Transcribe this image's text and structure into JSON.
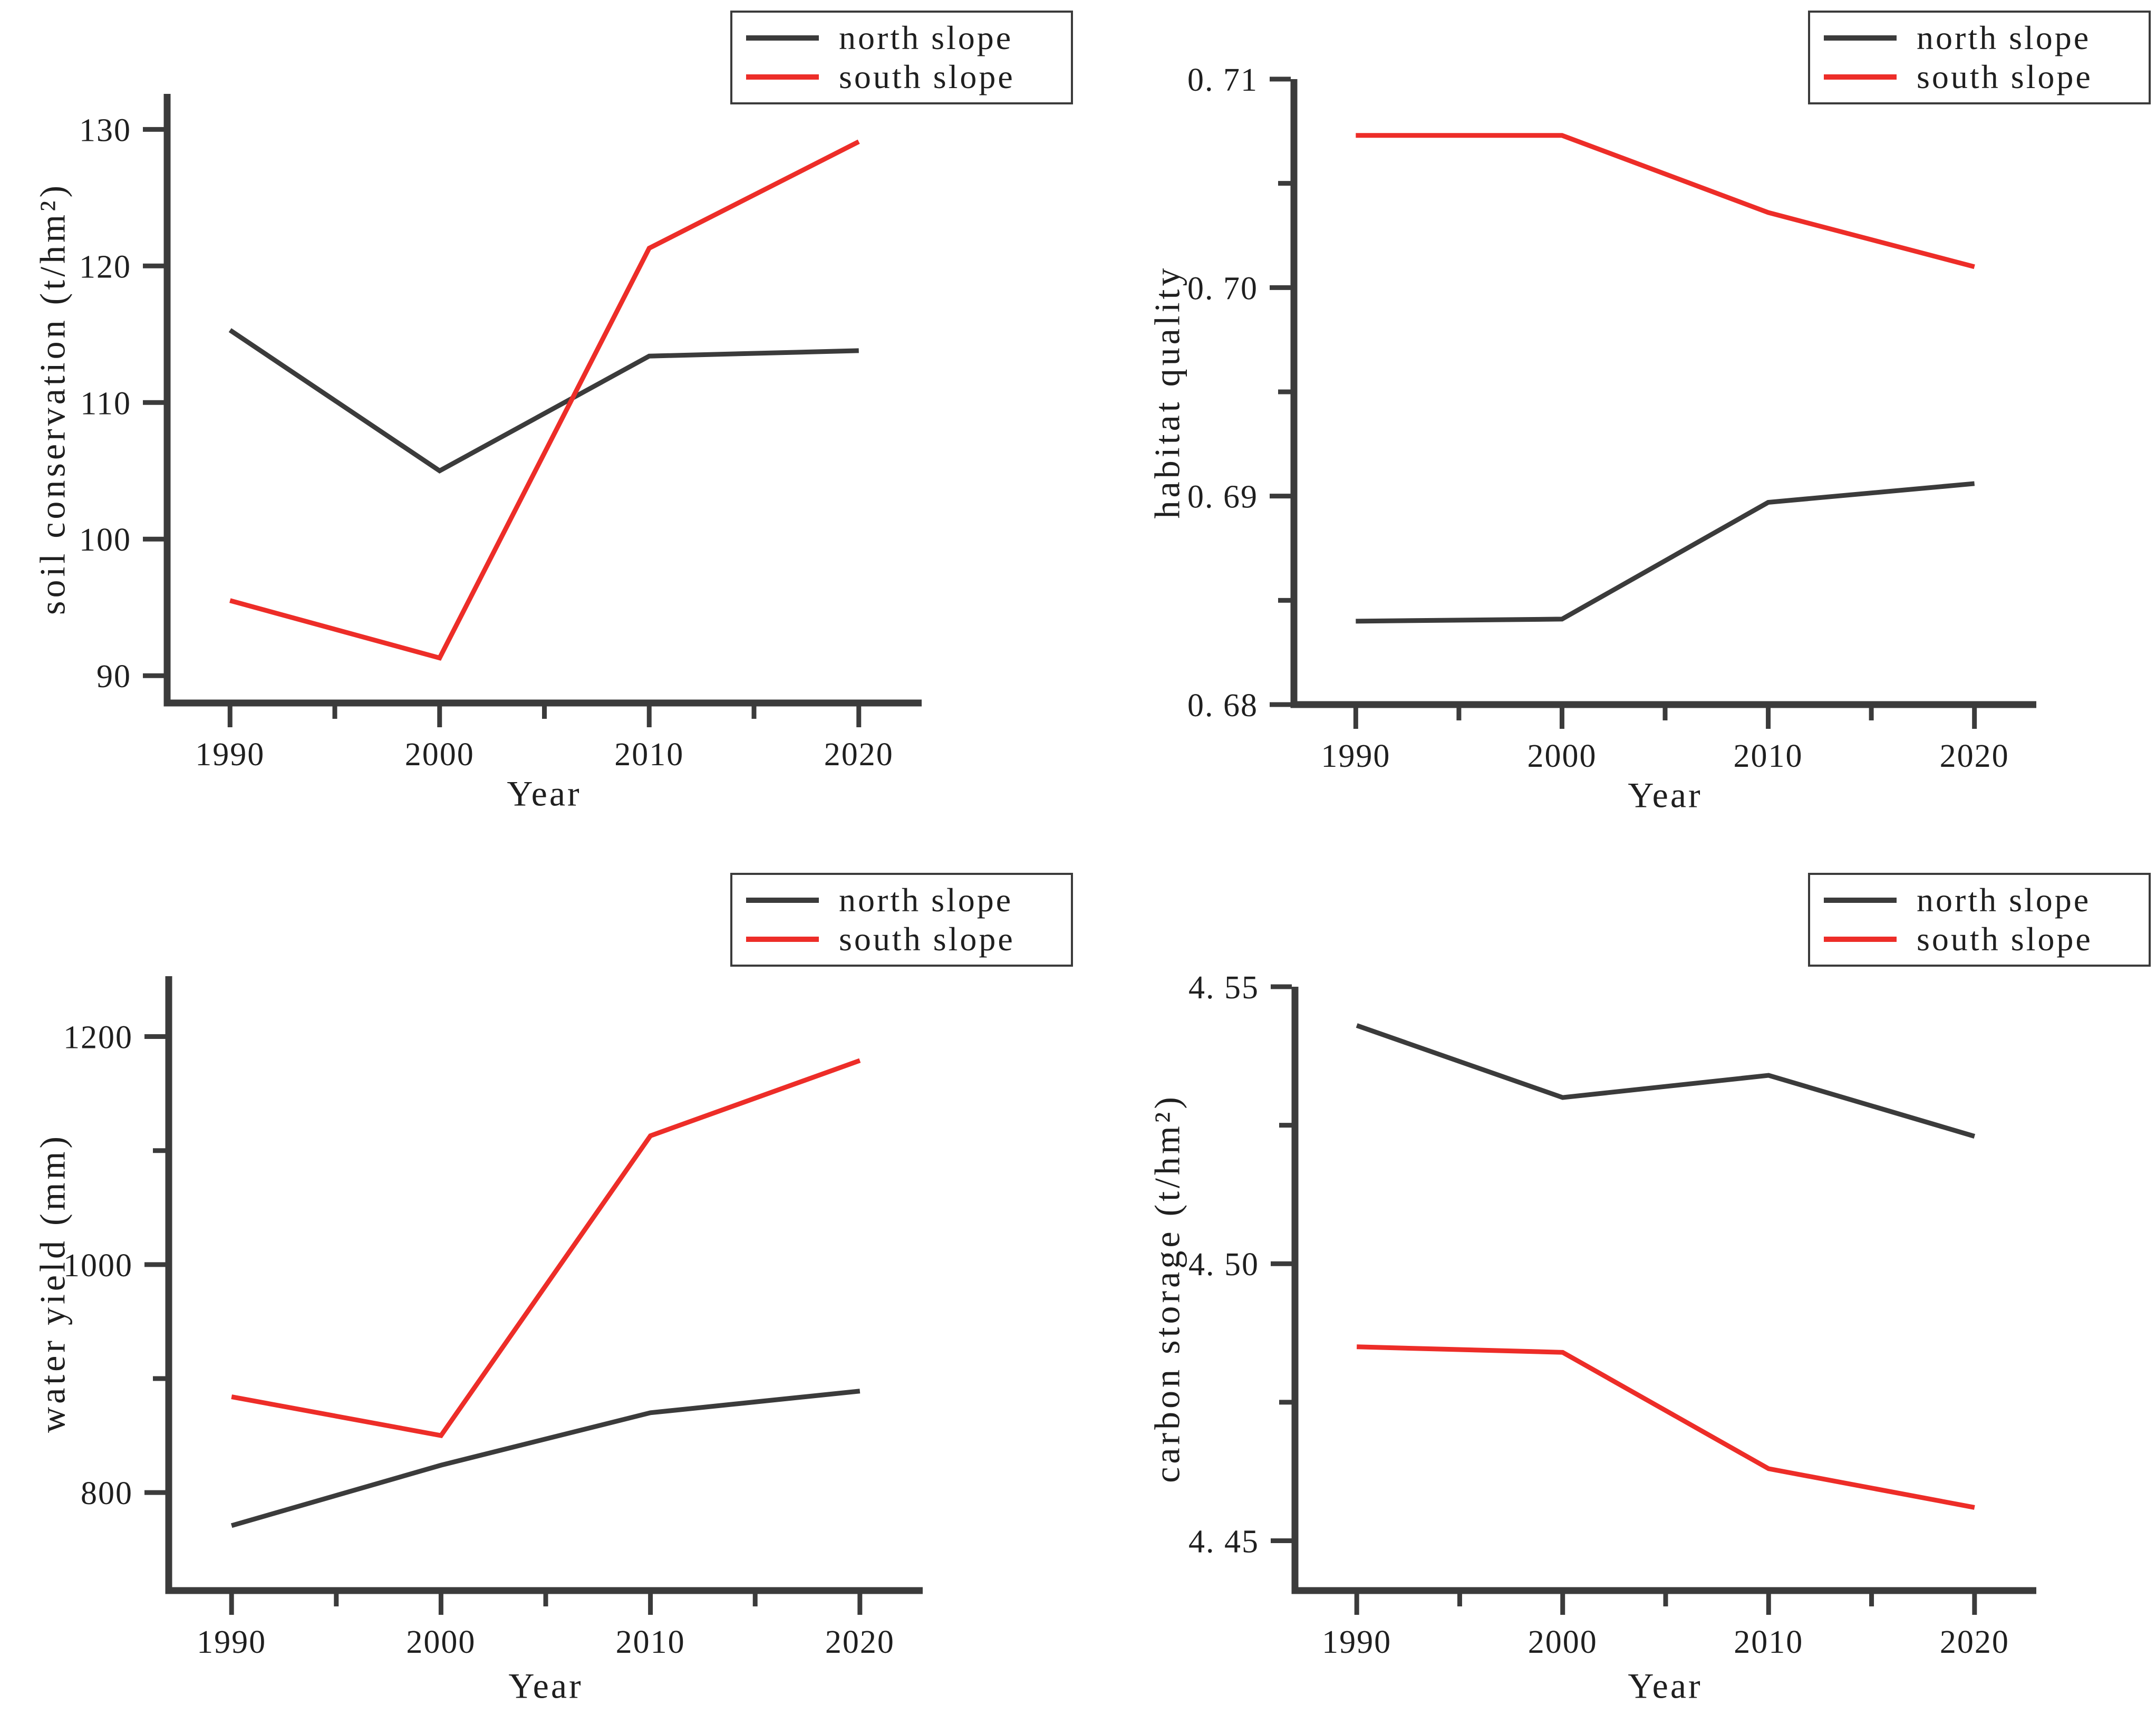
{
  "figure": {
    "background": "#ffffff",
    "series_colors": {
      "north_slope": "#3b3b3b",
      "south_slope": "#ed2d28"
    },
    "text_color": "#1f1f1f"
  },
  "legend": {
    "north_label": "north slope",
    "south_label": "south slope"
  },
  "chart_data": [
    {
      "id": "soil-conservation",
      "type": "line",
      "title": "",
      "xlabel": "Year",
      "ylabel": "soil conservation (t/hm²)",
      "x": [
        1990,
        2000,
        2010,
        2020
      ],
      "series": [
        {
          "name": "north slope",
          "color": "#3b3b3b",
          "values": [
            115.3,
            105.0,
            113.4,
            113.8
          ]
        },
        {
          "name": "south slope",
          "color": "#ed2d28",
          "values": [
            95.5,
            91.3,
            121.3,
            129.1
          ]
        }
      ],
      "xlim": [
        1987,
        2023
      ],
      "ylim": [
        88,
        132.6
      ],
      "xticks": [
        1990,
        2000,
        2010,
        2020
      ],
      "xtick_labels": [
        "1990",
        "2000",
        "2010",
        "2020"
      ],
      "xticks_minor": [
        1995,
        2005,
        2015
      ],
      "yticks": [
        90,
        100,
        110,
        120,
        130
      ],
      "ytick_labels": [
        "90",
        "100",
        "110",
        "120",
        "130"
      ],
      "yticks_minor": [],
      "grid": false,
      "legend_position": "top-right"
    },
    {
      "id": "habitat-quality",
      "type": "line",
      "title": "",
      "xlabel": "Year",
      "ylabel": "habitat quality",
      "x": [
        1990,
        2000,
        2010,
        2020
      ],
      "series": [
        {
          "name": "north slope",
          "color": "#3b3b3b",
          "values": [
            0.684,
            0.6841,
            0.6897,
            0.6906
          ]
        },
        {
          "name": "south slope",
          "color": "#ed2d28",
          "values": [
            0.7073,
            0.7073,
            0.7036,
            0.701
          ]
        }
      ],
      "xlim": [
        1987,
        2023
      ],
      "ylim": [
        0.68,
        0.71
      ],
      "xticks": [
        1990,
        2000,
        2010,
        2020
      ],
      "xtick_labels": [
        "1990",
        "2000",
        "2010",
        "2020"
      ],
      "xticks_minor": [
        1995,
        2005,
        2015
      ],
      "yticks": [
        0.68,
        0.69,
        0.7,
        0.71
      ],
      "ytick_labels": [
        "0. 68",
        "0. 69",
        "0. 70",
        "0. 71"
      ],
      "yticks_minor": [
        0.685,
        0.695,
        0.705
      ],
      "grid": false,
      "legend_position": "top-right"
    },
    {
      "id": "water-yield",
      "type": "line",
      "title": "",
      "xlabel": "Year",
      "ylabel": "water yield (mm)",
      "x": [
        1990,
        2000,
        2010,
        2020
      ],
      "series": [
        {
          "name": "north slope",
          "color": "#3b3b3b",
          "values": [
            771,
            824,
            870,
            889
          ]
        },
        {
          "name": "south slope",
          "color": "#ed2d28",
          "values": [
            884,
            850,
            1113,
            1179
          ]
        }
      ],
      "xlim": [
        1987,
        2023
      ],
      "ylim": [
        714,
        1253
      ],
      "xticks": [
        1990,
        2000,
        2010,
        2020
      ],
      "xtick_labels": [
        "1990",
        "2000",
        "2010",
        "2020"
      ],
      "xticks_minor": [
        1995,
        2005,
        2015
      ],
      "yticks": [
        800,
        1000,
        1200
      ],
      "ytick_labels": [
        "800",
        "1000",
        "1200"
      ],
      "yticks_minor": [
        900,
        1100
      ],
      "grid": false,
      "legend_position": "top-right"
    },
    {
      "id": "carbon-storage",
      "type": "line",
      "title": "",
      "xlabel": "Year",
      "ylabel": "carbon storage (t/hm²)",
      "x": [
        1990,
        2000,
        2010,
        2020
      ],
      "series": [
        {
          "name": "north slope",
          "color": "#3b3b3b",
          "values": [
            4.543,
            4.53,
            4.534,
            4.523
          ]
        },
        {
          "name": "south slope",
          "color": "#ed2d28",
          "values": [
            4.485,
            4.484,
            4.463,
            4.456
          ]
        }
      ],
      "xlim": [
        1987,
        2023
      ],
      "ylim": [
        4.441,
        4.55
      ],
      "xticks": [
        1990,
        2000,
        2010,
        2020
      ],
      "xtick_labels": [
        "1990",
        "2000",
        "2010",
        "2020"
      ],
      "xticks_minor": [
        1995,
        2005,
        2015
      ],
      "yticks": [
        4.45,
        4.5,
        4.55
      ],
      "ytick_labels": [
        "4. 45",
        "4. 50",
        "4. 55"
      ],
      "yticks_minor": [
        4.475,
        4.525
      ],
      "grid": false,
      "legend_position": "top-right"
    }
  ]
}
